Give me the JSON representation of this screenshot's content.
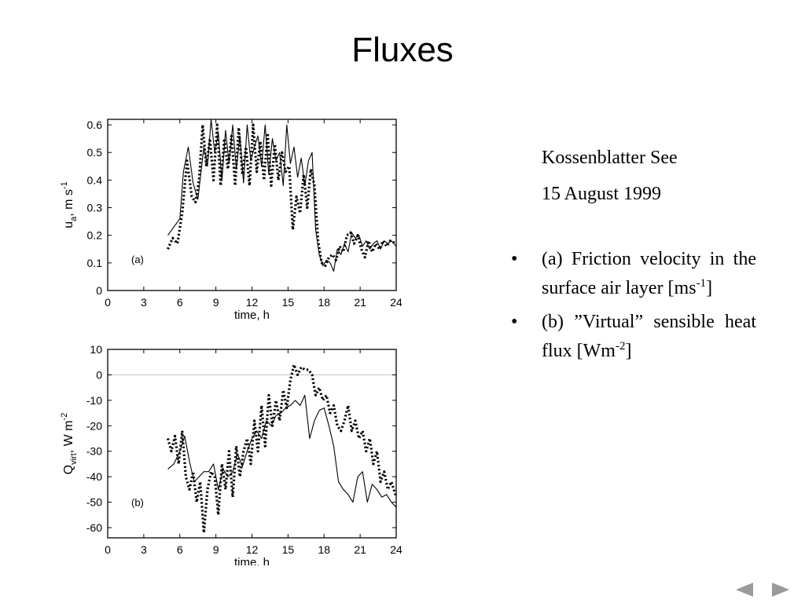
{
  "slide": {
    "title": "Fluxes",
    "location": "Kossenblatter See",
    "date": "15 August 1999",
    "bullets": [
      {
        "marker": "•",
        "parts": [
          {
            "text": "(a) Friction velocity in the surface air layer [ms"
          },
          {
            "text": "-1",
            "sup": true
          },
          {
            "text": "]"
          }
        ]
      },
      {
        "marker": "•",
        "parts": [
          {
            "text": "(b) ”Virtual” sensible heat flux [Wm"
          },
          {
            "text": "-2",
            "sup": true
          },
          {
            "text": "]"
          }
        ]
      }
    ],
    "nav": {
      "prev_icon": "◀",
      "next_icon": "▶"
    }
  },
  "colors": {
    "background": "#ffffff",
    "text": "#000000",
    "zero_line": "#c8c8c8",
    "nav": "#9a9a9a"
  },
  "chart_data": [
    {
      "type": "line",
      "panel_label": "(a)",
      "xlabel": "time, h",
      "ylabel": {
        "base": "u",
        "sub": "a",
        "tail": ", m s",
        "sup": "-1"
      },
      "xlim": [
        0,
        24
      ],
      "ylim": [
        0,
        0.62
      ],
      "xticks": [
        0,
        3,
        6,
        9,
        12,
        15,
        18,
        21,
        24
      ],
      "yticks": [
        0,
        0.1,
        0.2,
        0.3,
        0.4,
        0.5,
        0.6
      ],
      "ytick_labels": [
        "0",
        "0.1",
        "0.2",
        "0.3",
        "0.4",
        "0.5",
        "0.6"
      ],
      "grid": false,
      "series": [
        {
          "style": "solid",
          "x": [
            5,
            5.5,
            6,
            6.3,
            6.7,
            7.1,
            7.5,
            8,
            8.3,
            8.6,
            8.9,
            9.2,
            9.5,
            9.8,
            10.1,
            10.4,
            10.7,
            11,
            11.3,
            11.6,
            11.9,
            12.2,
            12.5,
            12.8,
            13.1,
            13.4,
            13.7,
            14,
            14.3,
            14.6,
            14.9,
            15.2,
            15.5,
            15.8,
            16.1,
            16.4,
            16.7,
            17,
            17.3,
            17.6,
            17.9,
            18.2,
            18.5,
            18.8,
            19.1,
            19.4,
            19.7,
            20,
            20.3,
            20.6,
            20.9,
            21.2,
            21.5,
            21.8,
            22.1,
            22.4,
            22.7,
            23,
            23.3,
            23.6,
            24
          ],
          "y": [
            0.2,
            0.23,
            0.26,
            0.43,
            0.52,
            0.39,
            0.33,
            0.52,
            0.45,
            0.62,
            0.5,
            0.57,
            0.4,
            0.58,
            0.46,
            0.6,
            0.44,
            0.56,
            0.39,
            0.6,
            0.47,
            0.52,
            0.56,
            0.45,
            0.6,
            0.42,
            0.55,
            0.47,
            0.5,
            0.38,
            0.6,
            0.46,
            0.52,
            0.41,
            0.48,
            0.38,
            0.47,
            0.5,
            0.22,
            0.13,
            0.09,
            0.11,
            0.1,
            0.07,
            0.15,
            0.13,
            0.17,
            0.14,
            0.21,
            0.19,
            0.2,
            0.16,
            0.18,
            0.15,
            0.17,
            0.18,
            0.15,
            0.18,
            0.17,
            0.18,
            0.16
          ]
        },
        {
          "style": "dotted",
          "x": [
            5,
            5.4,
            5.8,
            6.2,
            6.6,
            7,
            7.3,
            7.6,
            7.9,
            8.2,
            8.5,
            8.8,
            9.1,
            9.4,
            9.7,
            10,
            10.3,
            10.6,
            10.9,
            11.2,
            11.5,
            11.8,
            12.1,
            12.4,
            12.7,
            13,
            13.3,
            13.6,
            13.9,
            14.2,
            14.5,
            14.8,
            15.1,
            15.4,
            15.7,
            16,
            16.3,
            16.6,
            16.9,
            17.2,
            17.5,
            17.8,
            18.1,
            18.4,
            18.7,
            19,
            19.3,
            19.6,
            19.9,
            20.2,
            20.5,
            20.8,
            21.1,
            21.4,
            21.7,
            22,
            22.3,
            22.6,
            22.9,
            23.2,
            23.5,
            24
          ],
          "y": [
            0.15,
            0.19,
            0.17,
            0.28,
            0.47,
            0.34,
            0.32,
            0.4,
            0.6,
            0.45,
            0.55,
            0.4,
            0.6,
            0.38,
            0.55,
            0.44,
            0.56,
            0.38,
            0.59,
            0.42,
            0.52,
            0.38,
            0.6,
            0.43,
            0.54,
            0.4,
            0.57,
            0.38,
            0.53,
            0.4,
            0.5,
            0.43,
            0.45,
            0.22,
            0.34,
            0.28,
            0.42,
            0.3,
            0.44,
            0.38,
            0.18,
            0.1,
            0.09,
            0.12,
            0.13,
            0.11,
            0.16,
            0.14,
            0.2,
            0.21,
            0.17,
            0.2,
            0.15,
            0.12,
            0.18,
            0.14,
            0.17,
            0.15,
            0.18,
            0.16,
            0.18,
            0.17
          ]
        }
      ]
    },
    {
      "type": "line",
      "panel_label": "(b)",
      "xlabel": "time, h",
      "ylabel": {
        "base": "Q",
        "sub": "virt",
        "tail": ", W m",
        "sup": "-2"
      },
      "xlim": [
        0,
        24
      ],
      "ylim": [
        -64,
        10
      ],
      "xticks": [
        0,
        3,
        6,
        9,
        12,
        15,
        18,
        21,
        24
      ],
      "yticks": [
        10,
        0,
        -10,
        -20,
        -30,
        -40,
        -50,
        -60
      ],
      "ytick_labels": [
        "10",
        "0",
        "-10",
        "-20",
        "-30",
        "-40",
        "-50",
        "-60"
      ],
      "zero_line": 0,
      "grid": false,
      "series": [
        {
          "style": "solid",
          "x": [
            5,
            5.5,
            6,
            6.4,
            6.8,
            7.2,
            7.6,
            8,
            8.4,
            8.8,
            9.2,
            9.6,
            10,
            10.4,
            10.8,
            11.2,
            11.6,
            12,
            12.4,
            12.8,
            13.2,
            13.6,
            14,
            14.4,
            14.8,
            15.2,
            15.6,
            16,
            16.4,
            16.8,
            17.2,
            17.6,
            18,
            18.4,
            18.8,
            19.2,
            19.6,
            20,
            20.4,
            20.8,
            21.2,
            21.6,
            22,
            22.4,
            22.8,
            23.2,
            23.6,
            24
          ],
          "y": [
            -37,
            -35,
            -30,
            -24,
            -34,
            -42,
            -40,
            -38,
            -38,
            -35,
            -45,
            -37,
            -40,
            -38,
            -31,
            -36,
            -30,
            -25,
            -22,
            -25,
            -18,
            -20,
            -16,
            -15,
            -13,
            -12,
            -10,
            -12,
            -8,
            -25,
            -18,
            -14,
            -13,
            -20,
            -28,
            -42,
            -45,
            -47,
            -50,
            -40,
            -38,
            -50,
            -43,
            -45,
            -48,
            -47,
            -50,
            -52
          ]
        },
        {
          "style": "dotted",
          "x": [
            5,
            5.3,
            5.6,
            5.9,
            6.2,
            6.5,
            6.8,
            7.1,
            7.4,
            7.7,
            8,
            8.3,
            8.6,
            8.9,
            9.2,
            9.5,
            9.8,
            10.1,
            10.4,
            10.7,
            11,
            11.3,
            11.6,
            11.9,
            12.2,
            12.5,
            12.8,
            13.1,
            13.4,
            13.7,
            14,
            14.3,
            14.6,
            14.9,
            15.2,
            15.5,
            15.8,
            16.1,
            16.4,
            16.7,
            17,
            17.3,
            17.6,
            17.9,
            18.2,
            18.5,
            18.8,
            19.1,
            19.4,
            19.7,
            20,
            20.3,
            20.6,
            20.9,
            21.2,
            21.5,
            21.8,
            22.1,
            22.4,
            22.7,
            23,
            23.3,
            23.6,
            24
          ],
          "y": [
            -25,
            -30,
            -24,
            -35,
            -22,
            -40,
            -45,
            -38,
            -50,
            -42,
            -62,
            -45,
            -38,
            -40,
            -55,
            -35,
            -45,
            -30,
            -48,
            -28,
            -40,
            -30,
            -25,
            -35,
            -18,
            -30,
            -12,
            -28,
            -8,
            -20,
            -10,
            -18,
            -6,
            -13,
            -2,
            4,
            0,
            3,
            2,
            2,
            0,
            -8,
            -5,
            -10,
            -8,
            -15,
            -12,
            -20,
            -22,
            -18,
            -12,
            -22,
            -18,
            -25,
            -22,
            -30,
            -25,
            -35,
            -30,
            -42,
            -38,
            -45,
            -42,
            -48
          ]
        }
      ]
    }
  ]
}
